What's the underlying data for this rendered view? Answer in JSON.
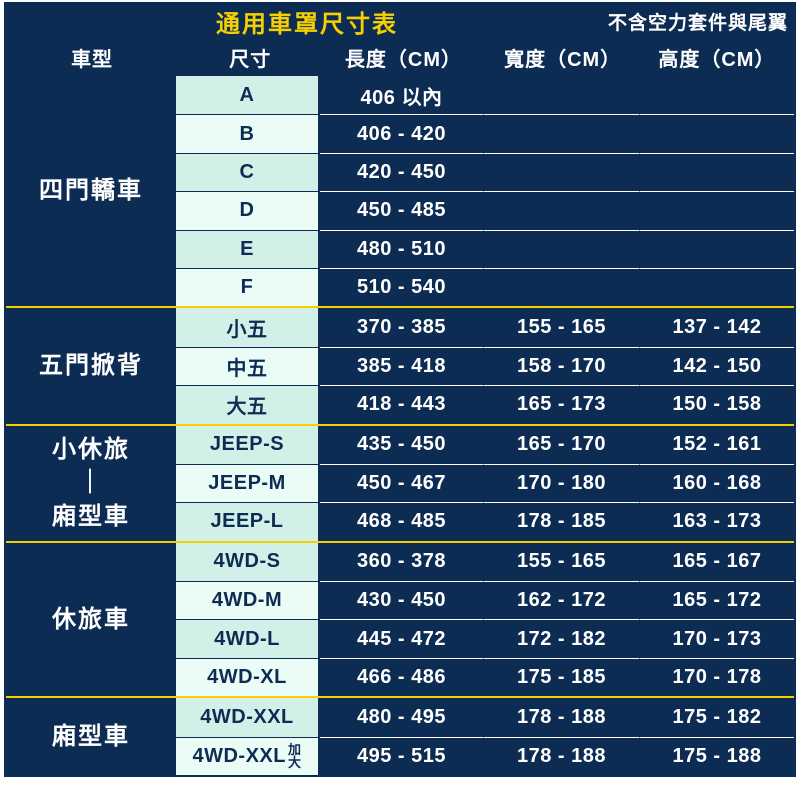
{
  "title": "通用車罩尺寸表",
  "note": "不含空力套件與尾翼",
  "columns": {
    "type": "車型",
    "size": "尺寸",
    "length": "長度（CM）",
    "width": "寬度（CM）",
    "height": "高度（CM）"
  },
  "colors": {
    "navy": "#0d2c54",
    "yellow": "#f5d000",
    "mint": "#d2f0e8",
    "mint_alt": "#ebfbf6",
    "white": "#ffffff"
  },
  "groups": [
    {
      "type": "四門轎車",
      "rows": [
        {
          "size": "A",
          "length": "406 以內",
          "width": "",
          "height": ""
        },
        {
          "size": "B",
          "length": "406 - 420",
          "width": "",
          "height": ""
        },
        {
          "size": "C",
          "length": "420 - 450",
          "width": "",
          "height": ""
        },
        {
          "size": "D",
          "length": "450 - 485",
          "width": "",
          "height": ""
        },
        {
          "size": "E",
          "length": "480 - 510",
          "width": "",
          "height": ""
        },
        {
          "size": "F",
          "length": "510 - 540",
          "width": "",
          "height": ""
        }
      ]
    },
    {
      "type": "五門掀背",
      "rows": [
        {
          "size": "小五",
          "length": "370 - 385",
          "width": "155 - 165",
          "height": "137 - 142"
        },
        {
          "size": "中五",
          "length": "385 - 418",
          "width": "158 - 170",
          "height": "142 - 150"
        },
        {
          "size": "大五",
          "length": "418 - 443",
          "width": "165 - 173",
          "height": "150 - 158"
        }
      ]
    },
    {
      "type": "小休旅\n｜\n廂型車",
      "rows": [
        {
          "size": "JEEP-S",
          "length": "435 - 450",
          "width": "165 - 170",
          "height": "152 - 161"
        },
        {
          "size": "JEEP-M",
          "length": "450 - 467",
          "width": "170 - 180",
          "height": "160 - 168"
        },
        {
          "size": "JEEP-L",
          "length": "468 - 485",
          "width": "178 - 185",
          "height": "163 - 173"
        }
      ]
    },
    {
      "type": "休旅車",
      "rows": [
        {
          "size": "4WD-S",
          "length": "360 - 378",
          "width": "155 - 165",
          "height": "165 - 167"
        },
        {
          "size": "4WD-M",
          "length": "430 - 450",
          "width": "162 - 172",
          "height": "165 - 172"
        },
        {
          "size": "4WD-L",
          "length": "445 - 472",
          "width": "172 - 182",
          "height": "170 - 173"
        },
        {
          "size": "4WD-XL",
          "length": "466 - 486",
          "width": "175 - 185",
          "height": "170 - 178"
        }
      ]
    },
    {
      "type": "廂型車",
      "rows": [
        {
          "size": "4WD-XXL",
          "length": "480 - 495",
          "width": "178 - 188",
          "height": "175 - 182"
        },
        {
          "size": "4WD-XXL",
          "size_suffix": "加大",
          "length": "495 - 515",
          "width": "178 - 188",
          "height": "175 - 188"
        }
      ]
    }
  ]
}
